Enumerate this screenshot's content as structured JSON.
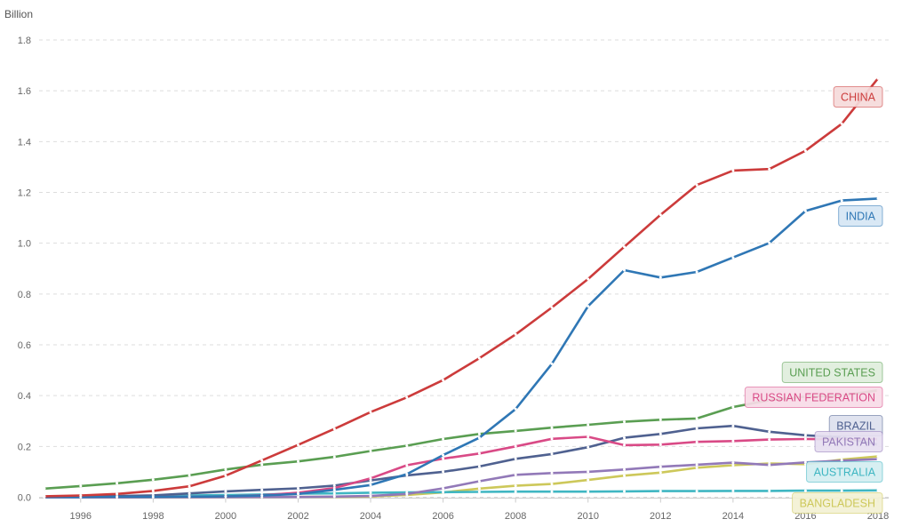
{
  "chart_data": {
    "type": "line",
    "ylabel": "Billion",
    "xlabel": "",
    "title": "",
    "ylim": [
      0,
      1.8
    ],
    "xlim": [
      1995,
      2018
    ],
    "y_ticks": [
      0.0,
      0.2,
      0.4,
      0.6,
      0.8,
      1.0,
      1.2,
      1.4,
      1.6,
      1.8
    ],
    "y_tick_labels": [
      "0.0",
      "0.2",
      "0.4",
      "0.6",
      "0.8",
      "1.0",
      "1.2",
      "1.4",
      "1.6",
      "1.8"
    ],
    "x_ticks": [
      1996,
      1998,
      2000,
      2002,
      2004,
      2006,
      2008,
      2010,
      2012,
      2014,
      2016,
      2018
    ],
    "x_tick_labels": [
      "1996",
      "1998",
      "2000",
      "2002",
      "2004",
      "2006",
      "2008",
      "2010",
      "2012",
      "2014",
      "2016",
      "2018"
    ],
    "grid": "horizontal-dashed",
    "legend": "inline labels at line ends",
    "x": [
      1995,
      1996,
      1997,
      1998,
      1999,
      2000,
      2001,
      2002,
      2003,
      2004,
      2005,
      2006,
      2007,
      2008,
      2009,
      2010,
      2011,
      2012,
      2013,
      2014,
      2015,
      2016,
      2017,
      2018
    ],
    "series": [
      {
        "name": "CHINA",
        "color": "#cc3b3b",
        "label_bg": "#f5dada",
        "values": [
          0.004,
          0.007,
          0.013,
          0.025,
          0.043,
          0.085,
          0.145,
          0.206,
          0.269,
          0.335,
          0.393,
          0.461,
          0.547,
          0.641,
          0.747,
          0.859,
          0.986,
          1.112,
          1.229,
          1.286,
          1.292,
          1.364,
          1.47,
          1.649
        ]
      },
      {
        "name": "INDIA",
        "color": "#2f77b5",
        "label_bg": "#d6e6f4",
        "values": [
          0.0001,
          0.0003,
          0.0009,
          0.0012,
          0.0019,
          0.0036,
          0.0066,
          0.013,
          0.029,
          0.048,
          0.091,
          0.166,
          0.234,
          0.347,
          0.525,
          0.752,
          0.894,
          0.865,
          0.887,
          0.944,
          1.001,
          1.127,
          1.168,
          1.176
        ]
      },
      {
        "name": "UNITED STATES",
        "color": "#5a9e52",
        "label_bg": "#dfeedc",
        "values": [
          0.034,
          0.044,
          0.055,
          0.069,
          0.086,
          0.109,
          0.128,
          0.141,
          0.159,
          0.182,
          0.203,
          0.229,
          0.249,
          0.261,
          0.274,
          0.285,
          0.297,
          0.305,
          0.31,
          0.355,
          0.382,
          0.396,
          0.4,
          0.421
        ]
      },
      {
        "name": "RUSSIAN FEDERATION",
        "color": "#d94a86",
        "label_bg": "#f7dbe7",
        "values": [
          0.0001,
          0.0002,
          0.0005,
          0.0007,
          0.0014,
          0.0033,
          0.0078,
          0.018,
          0.036,
          0.074,
          0.126,
          0.152,
          0.172,
          0.2,
          0.23,
          0.238,
          0.205,
          0.207,
          0.218,
          0.221,
          0.227,
          0.229,
          0.228,
          0.229
        ]
      },
      {
        "name": "BRAZIL",
        "color": "#4f6190",
        "label_bg": "#dde1ee",
        "values": [
          0.0013,
          0.0024,
          0.0046,
          0.0074,
          0.015,
          0.023,
          0.029,
          0.035,
          0.046,
          0.066,
          0.086,
          0.1,
          0.121,
          0.151,
          0.17,
          0.197,
          0.234,
          0.249,
          0.271,
          0.281,
          0.258,
          0.244,
          0.236,
          0.207
        ]
      },
      {
        "name": "PAKISTAN",
        "color": "#9279b8",
        "label_bg": "#e7e0f1",
        "values": [
          4e-05,
          7e-05,
          0.0001,
          0.0002,
          0.0003,
          0.0003,
          0.0007,
          0.0012,
          0.0024,
          0.005,
          0.013,
          0.035,
          0.063,
          0.088,
          0.095,
          0.1,
          0.109,
          0.12,
          0.128,
          0.136,
          0.127,
          0.137,
          0.144,
          0.15
        ]
      },
      {
        "name": "AUSTRALIA",
        "color": "#3fb6c2",
        "label_bg": "#d4eef1",
        "values": [
          0.0025,
          0.0035,
          0.0045,
          0.0052,
          0.0065,
          0.0085,
          0.011,
          0.014,
          0.015,
          0.018,
          0.019,
          0.02,
          0.021,
          0.022,
          0.022,
          0.022,
          0.023,
          0.024,
          0.024,
          0.025,
          0.025,
          0.026,
          0.026,
          0.027
        ]
      },
      {
        "name": "BANGLADESH",
        "color": "#cdc85a",
        "label_bg": "#f3f1d4",
        "values": [
          0.0,
          0.0,
          1e-05,
          3e-05,
          0.0001,
          0.0003,
          0.0005,
          0.0011,
          0.0014,
          0.0029,
          0.009,
          0.019,
          0.034,
          0.045,
          0.052,
          0.068,
          0.085,
          0.097,
          0.116,
          0.126,
          0.133,
          0.13,
          0.148,
          0.161
        ]
      }
    ]
  }
}
